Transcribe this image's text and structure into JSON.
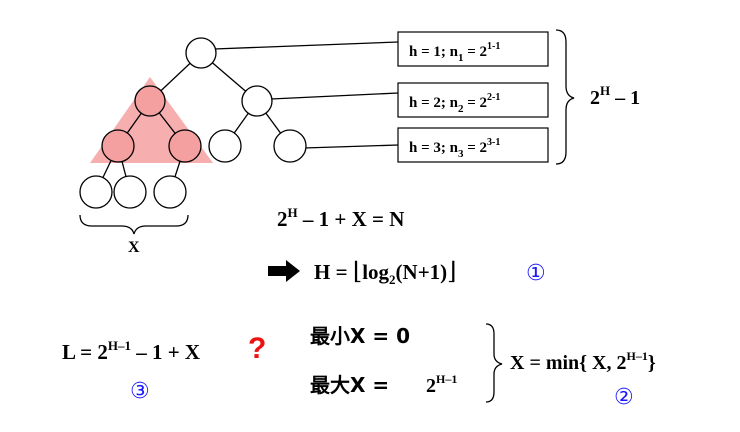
{
  "tree": {
    "x_label": "X"
  },
  "level_boxes": [
    {
      "h": "h = 1; n",
      "sub": "1",
      "eq": " = 2",
      "sup": "1-1"
    },
    {
      "h": "h = 2; n",
      "sub": "2",
      "eq": " = 2",
      "sup": "2-1"
    },
    {
      "h": "h = 3; n",
      "sub": "3",
      "eq": " = 2",
      "sup": "3-1"
    }
  ],
  "brace_total": {
    "base": "2",
    "sup": "H",
    "rest": " – 1"
  },
  "equation1": {
    "a": "2",
    "sup": "H",
    "b": " – 1 + X = N"
  },
  "equation2": {
    "a": "H = ",
    "floor_l": "⌊",
    "log": "log",
    "sub": "2",
    "arg": "(N+1)",
    "floor_r": "⌋",
    "num": "①"
  },
  "equation3": {
    "a": "L = 2",
    "sup": "H–1",
    "b": " – 1 + X",
    "mark": "?",
    "num": "③"
  },
  "min_max": {
    "min_label": "最小X = 0",
    "max_label": "最大X =",
    "max_base": "2",
    "max_sup": "H–1"
  },
  "equation4": {
    "a": "X =  min{ X, 2",
    "sup": "H–1",
    "b": "}",
    "num": "②"
  },
  "colors": {
    "highlight": "#f4a0a0",
    "circled_numbers": "#1a1aff",
    "question_mark": "#ee1111"
  }
}
